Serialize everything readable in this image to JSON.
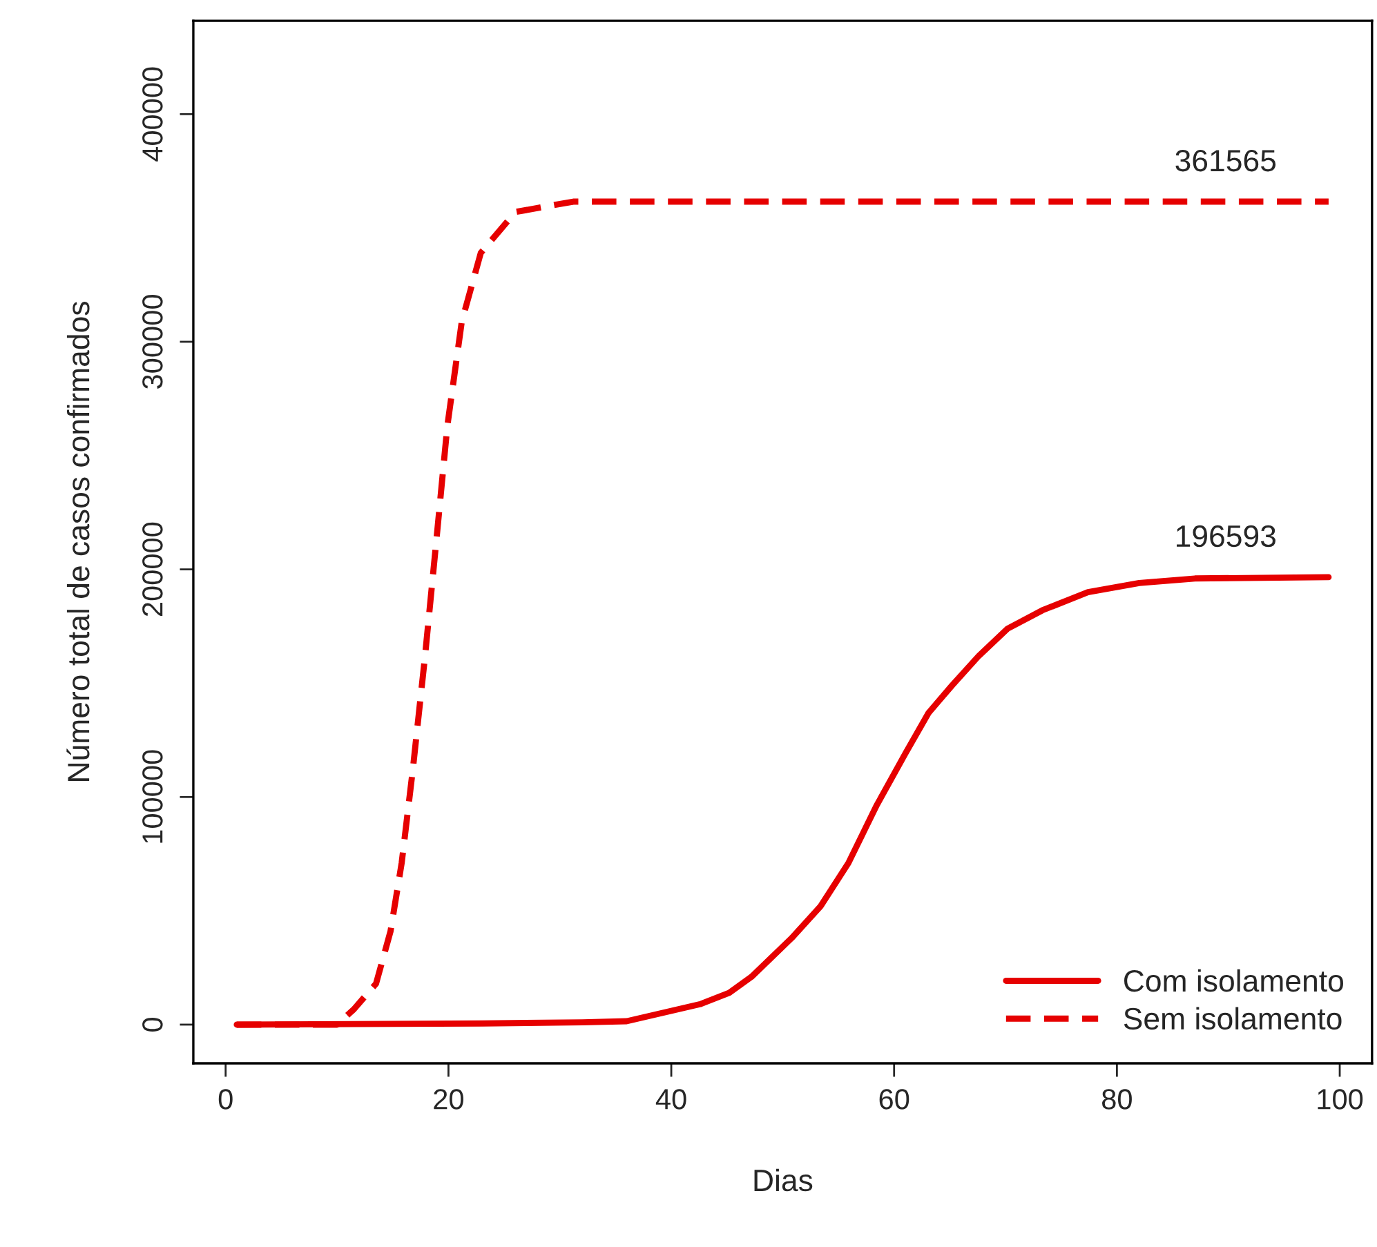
{
  "chart_data": {
    "type": "line",
    "xlabel": "Dias",
    "ylabel": "Número total de casos confirmados",
    "xlim": [
      -2.9,
      102.9
    ],
    "ylim": [
      -17000,
      441000
    ],
    "xticks": [
      0,
      20,
      40,
      60,
      80,
      100
    ],
    "yticks": [
      0,
      100000,
      200000,
      300000,
      400000
    ],
    "grid": false,
    "legend": "bottom right",
    "series": [
      {
        "name": "Com isolamento",
        "color": "#e60000",
        "line_style": "solid",
        "x": [
          1,
          23,
          32,
          36,
          42.6,
          45.2,
          47.2,
          50.8,
          53.4,
          55.9,
          58.4,
          61,
          63.1,
          65.2,
          67.6,
          70.2,
          73.3,
          77.4,
          82,
          87,
          99
        ],
        "values": [
          0,
          500,
          1000,
          1500,
          9000,
          14000,
          21000,
          38000,
          52000,
          71000,
          96000,
          119000,
          137000,
          149000,
          162000,
          174000,
          182000,
          190000,
          194000,
          196000,
          196593
        ]
      },
      {
        "name": "Sem isolamento",
        "color": "#e60000",
        "line_style": "dashed",
        "x": [
          1,
          10,
          11.5,
          13.5,
          14.8,
          15.8,
          16.8,
          17.9,
          18.9,
          19.9,
          21.2,
          22.9,
          26,
          31.2,
          99
        ],
        "values": [
          0,
          0,
          6700,
          18000,
          41000,
          71000,
          112000,
          162000,
          212000,
          263000,
          309000,
          339000,
          357000,
          361565,
          361565
        ]
      }
    ],
    "annotations": [
      {
        "text": "361565",
        "x": 99,
        "y": 361565
      },
      {
        "text": "196593",
        "x": 99,
        "y": 196593
      }
    ]
  }
}
